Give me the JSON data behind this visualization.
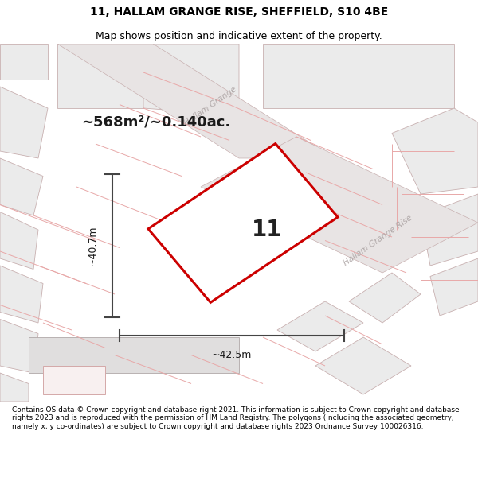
{
  "title": "11, HALLAM GRANGE RISE, SHEFFIELD, S10 4BE",
  "subtitle": "Map shows position and indicative extent of the property.",
  "footer": "Contains OS data © Crown copyright and database right 2021. This information is subject to Crown copyright and database rights 2023 and is reproduced with the permission of HM Land Registry. The polygons (including the associated geometry, namely x, y co-ordinates) are subject to Crown copyright and database rights 2023 Ordnance Survey 100026316.",
  "area_label": "~568m²/~0.140ac.",
  "width_label": "~42.5m",
  "height_label": "~40.7m",
  "plot_number": "11",
  "map_bg": "#ffffff",
  "plot_outline_color": "#cc0000",
  "plot_fill_color": "#ffffff",
  "road_label1": "Hallam Grange",
  "road_label2": "Hallam Grange Rise",
  "dim_line_color": "#444444",
  "parcel_fill": "#ebebeb",
  "parcel_ec": "#c8b0b0",
  "road_fill": "#e8e4e4",
  "pink_line": "#e8a8a8",
  "title_fontsize": 10,
  "subtitle_fontsize": 9,
  "footer_fontsize": 6.5
}
